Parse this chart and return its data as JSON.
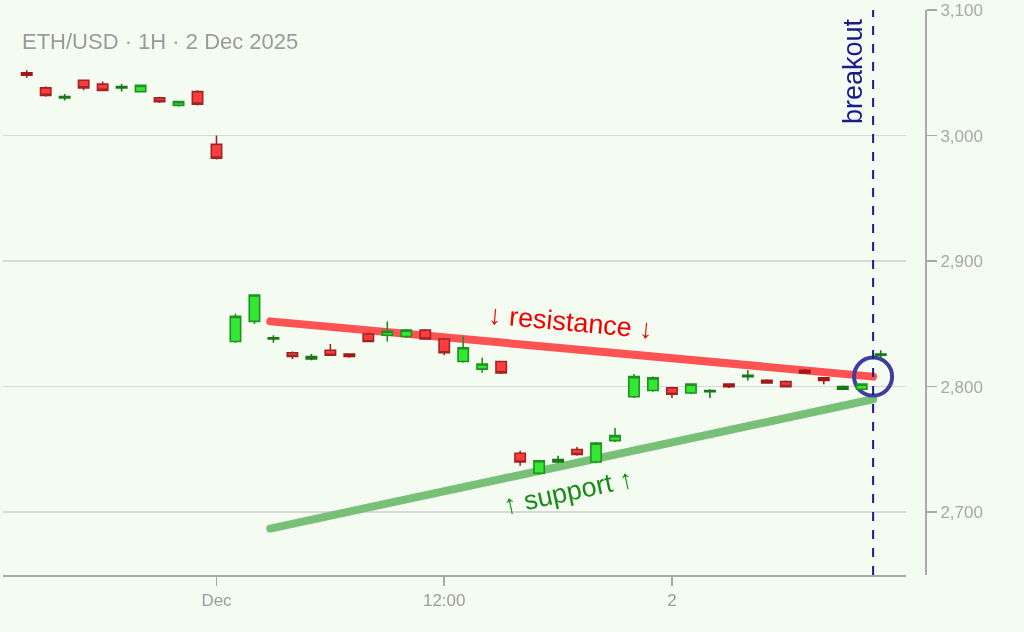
{
  "chart_data": {
    "type": "candlestick",
    "title": "ETH/USD · 1H · 2 Dec 2025",
    "x": [
      "2025-11-30T14:00",
      "2025-11-30T15:00",
      "2025-11-30T16:00",
      "2025-11-30T17:00",
      "2025-11-30T18:00",
      "2025-11-30T19:00",
      "2025-11-30T20:00",
      "2025-11-30T21:00",
      "2025-11-30T22:00",
      "2025-11-30T23:00",
      "2025-12-01T00:00",
      "2025-12-01T01:00",
      "2025-12-01T02:00",
      "2025-12-01T03:00",
      "2025-12-01T04:00",
      "2025-12-01T05:00",
      "2025-12-01T06:00",
      "2025-12-01T07:00",
      "2025-12-01T08:00",
      "2025-12-01T09:00",
      "2025-12-01T10:00",
      "2025-12-01T11:00",
      "2025-12-01T12:00",
      "2025-12-01T13:00",
      "2025-12-01T14:00",
      "2025-12-01T15:00",
      "2025-12-01T16:00",
      "2025-12-01T17:00",
      "2025-12-01T18:00",
      "2025-12-01T19:00",
      "2025-12-01T20:00",
      "2025-12-01T21:00",
      "2025-12-01T22:00",
      "2025-12-01T23:00",
      "2025-12-02T00:00",
      "2025-12-02T01:00",
      "2025-12-02T02:00",
      "2025-12-02T03:00",
      "2025-12-02T04:00",
      "2025-12-02T05:00",
      "2025-12-02T06:00",
      "2025-12-02T07:00",
      "2025-12-02T08:00",
      "2025-12-02T09:00",
      "2025-12-02T10:00",
      "2025-12-02T11:00"
    ],
    "ohlc": [
      [
        3050,
        3052,
        3046,
        3048
      ],
      [
        3038,
        3039,
        3031,
        3032
      ],
      [
        3030,
        3033,
        3028,
        3031
      ],
      [
        3044,
        3044,
        3036,
        3038
      ],
      [
        3041,
        3043,
        3036,
        3036
      ],
      [
        3038,
        3041,
        3035,
        3039
      ],
      [
        3035,
        3040,
        3035,
        3040
      ],
      [
        3030,
        3031,
        3026,
        3027
      ],
      [
        3024,
        3027,
        3023,
        3027
      ],
      [
        3035,
        3036,
        3024,
        3025
      ],
      [
        2993,
        3000,
        2981,
        2982
      ],
      [
        2836,
        2858,
        2835,
        2856
      ],
      [
        2852,
        2873,
        2850,
        2873
      ],
      [
        2838,
        2841,
        2835,
        2839
      ],
      [
        2827,
        2828,
        2822,
        2824
      ],
      [
        2822,
        2826,
        2821,
        2824
      ],
      [
        2829,
        2834,
        2825,
        2825
      ],
      [
        2826,
        2826,
        2823,
        2824
      ],
      [
        2842,
        2843,
        2836,
        2836
      ],
      [
        2841,
        2852,
        2836,
        2844
      ],
      [
        2840,
        2846,
        2839,
        2845
      ],
      [
        2845,
        2846,
        2838,
        2838
      ],
      [
        2838,
        2839,
        2825,
        2827
      ],
      [
        2820,
        2840,
        2819,
        2831
      ],
      [
        2814,
        2823,
        2811,
        2818
      ],
      [
        2820,
        2820,
        2810,
        2811
      ],
      [
        2747,
        2749,
        2737,
        2740
      ],
      [
        2731,
        2741,
        2730,
        2741
      ],
      [
        2740,
        2745,
        2739,
        2742
      ],
      [
        2750,
        2752,
        2745,
        2746
      ],
      [
        2740,
        2756,
        2739,
        2755
      ],
      [
        2757,
        2767,
        2756,
        2761
      ],
      [
        2792,
        2810,
        2791,
        2808
      ],
      [
        2797,
        2808,
        2796,
        2807
      ],
      [
        2799,
        2800,
        2791,
        2794
      ],
      [
        2795,
        2802,
        2794,
        2802
      ],
      [
        2796,
        2798,
        2791,
        2797
      ],
      [
        2802,
        2802,
        2799,
        2800
      ],
      [
        2808,
        2813,
        2805,
        2809
      ],
      [
        2805,
        2806,
        2803,
        2803
      ],
      [
        2804,
        2805,
        2800,
        2800
      ],
      [
        2813,
        2814,
        2810,
        2811
      ],
      [
        2807,
        2807,
        2802,
        2805
      ],
      [
        2798,
        2801,
        2798,
        2800
      ],
      [
        2798,
        2802,
        2798,
        2802
      ],
      [
        2825,
        2829,
        2822,
        2826
      ]
    ],
    "colors": [
      "#a01818",
      "#ff3b3b",
      "#187818",
      "#ff3b3b",
      "#ff3b3b",
      "#187818",
      "#33e833",
      "#ff3b3b",
      "#33e833",
      "#ff3b3b",
      "#ff3b3b",
      "#33e833",
      "#33e833",
      "#187818",
      "#ff3b3b",
      "#187818",
      "#ff3b3b",
      "#a01818",
      "#ff3b3b",
      "#33e833",
      "#33e833",
      "#ff3b3b",
      "#ff3b3b",
      "#33e833",
      "#33e833",
      "#ff3b3b",
      "#ff3b3b",
      "#33e833",
      "#187818",
      "#ff3b3b",
      "#33e833",
      "#33e833",
      "#33e833",
      "#33e833",
      "#ff3b3b",
      "#33e833",
      "#187818",
      "#a01818",
      "#187818",
      "#a01818",
      "#ff3b3b",
      "#a01818",
      "#a01818",
      "#187818",
      "#33e833",
      "#187818"
    ],
    "series": [
      {
        "type": "line",
        "color": "#ff5252",
        "x": [
          "2025-12-01T02:50",
          "2025-12-02T10:36"
        ],
        "values": [
          2852,
          2808
        ]
      },
      {
        "type": "line",
        "color": "#78c078",
        "x": [
          "2025-12-01T02:50",
          "2025-12-02T10:36"
        ],
        "values": [
          2687,
          2790
        ]
      },
      {
        "type": "scatter",
        "color": "#3e3e9e",
        "x": [
          "2025-12-02T10:36"
        ],
        "values": [
          2808
        ],
        "marker": "circle"
      }
    ],
    "xlim": [
      "2025-11-30T12:45",
      "2025-12-02T12:20"
    ],
    "xticks": [
      {
        "value": "2025-12-01",
        "label": "Dec"
      },
      {
        "value": "2025-12-01T12:00",
        "label": "12:00"
      },
      {
        "value": "2025-12-02",
        "label": "2"
      }
    ],
    "ylim": [
      2650,
      3100
    ],
    "yticks": [
      {
        "value": 2700,
        "label": "2,700"
      },
      {
        "value": 2800,
        "label": "2,800"
      },
      {
        "value": 2900,
        "label": "2,900"
      },
      {
        "value": 3000,
        "label": "3,000"
      },
      {
        "value": 3100,
        "label": "3,100"
      }
    ],
    "grid": "y",
    "ref_lines": [
      {
        "axis": "x",
        "value": "2025-12-02T10:36",
        "label": "breakout",
        "color": "#1a1a8c",
        "line_style": "dashed"
      }
    ],
    "annotations": [
      {
        "text": "↓ resistance ↓",
        "x": "2025-12-01T18:40",
        "y": 2830
      },
      {
        "text": "↑ support ↑",
        "x": "2025-12-01T18:30",
        "y": 2738
      }
    ]
  }
}
